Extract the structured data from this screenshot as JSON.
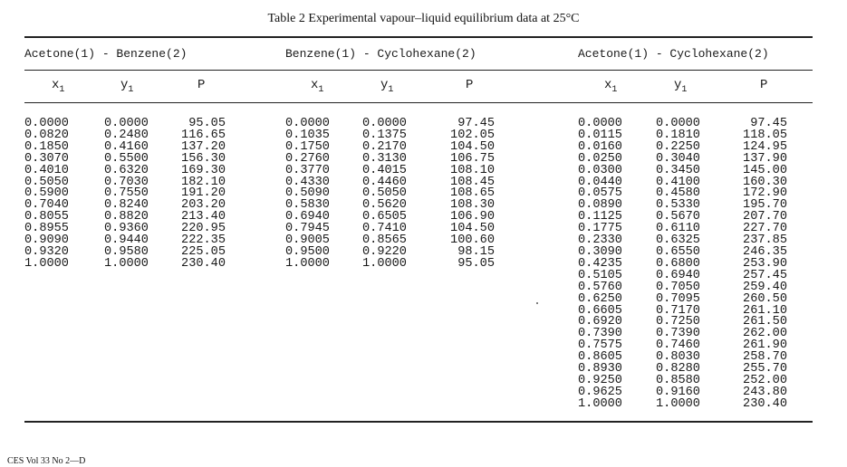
{
  "caption": "Table 2  Experimental vapour–liquid equilibrium data at 25°C",
  "systems": [
    {
      "header": "Acetone(1) - Benzene(2)",
      "col_headers": {
        "x": "x",
        "y": "y",
        "sub": "1",
        "p": "P"
      },
      "x1": [
        "0.0000",
        "0.0820",
        "0.1850",
        "0.3070",
        "0.4010",
        "0.5050",
        "0.5900",
        "0.7040",
        "0.8055",
        "0.8955",
        "0.9090",
        "0.9320",
        "1.0000"
      ],
      "y1": [
        "0.0000",
        "0.2480",
        "0.4160",
        "0.5500",
        "0.6320",
        "0.7030",
        "0.7550",
        "0.8240",
        "0.8820",
        "0.9360",
        "0.9440",
        "0.9580",
        "1.0000"
      ],
      "P": [
        "95.05",
        "116.65",
        "137.20",
        "156.30",
        "169.30",
        "182.10",
        "191.20",
        "203.20",
        "213.40",
        "220.95",
        "222.35",
        "225.05",
        "230.40"
      ]
    },
    {
      "header": "Benzene(1) - Cyclohexane(2)",
      "col_headers": {
        "x": "x",
        "y": "y",
        "sub": "1",
        "p": "P"
      },
      "x1": [
        "0.0000",
        "0.1035",
        "0.1750",
        "0.2760",
        "0.3770",
        "0.4330",
        "0.5090",
        "0.5830",
        "0.6940",
        "0.7945",
        "0.9005",
        "0.9500",
        "1.0000"
      ],
      "y1": [
        "0.0000",
        "0.1375",
        "0.2170",
        "0.3130",
        "0.4015",
        "0.4460",
        "0.5050",
        "0.5620",
        "0.6505",
        "0.7410",
        "0.8565",
        "0.9220",
        "1.0000"
      ],
      "P": [
        "97.45",
        "102.05",
        "104.50",
        "106.75",
        "108.10",
        "108.45",
        "108.65",
        "108.30",
        "106.90",
        "104.50",
        "100.60",
        "98.15",
        "95.05"
      ]
    },
    {
      "header": "Acetone(1) - Cyclohexane(2)",
      "col_headers": {
        "x": "x",
        "y": "y",
        "sub": "1",
        "p": "P"
      },
      "x1": [
        "0.0000",
        "0.0115",
        "0.0160",
        "0.0250",
        "0.0300",
        "0.0440",
        "0.0575",
        "0.0890",
        "0.1125",
        "0.1775",
        "0.2330",
        "0.3090",
        "0.4235",
        "0.5105",
        "0.5760",
        "0.6250",
        "0.6605",
        "0.6920",
        "0.7390",
        "0.7575",
        "0.8605",
        "0.8930",
        "0.9250",
        "0.9625",
        "1.0000"
      ],
      "y1": [
        "0.0000",
        "0.1810",
        "0.2250",
        "0.3040",
        "0.3450",
        "0.4100",
        "0.4580",
        "0.5330",
        "0.5670",
        "0.6110",
        "0.6325",
        "0.6550",
        "0.6800",
        "0.6940",
        "0.7050",
        "0.7095",
        "0.7170",
        "0.7250",
        "0.7390",
        "0.7460",
        "0.8030",
        "0.8280",
        "0.8580",
        "0.9160",
        "1.0000"
      ],
      "P": [
        "97.45",
        "118.05",
        "124.95",
        "137.90",
        "145.00",
        "160.30",
        "172.90",
        "195.70",
        "207.70",
        "227.70",
        "237.85",
        "246.35",
        "253.90",
        "257.45",
        "259.40",
        "260.50",
        "261.10",
        "261.50",
        "262.00",
        "261.90",
        "258.70",
        "255.70",
        "252.00",
        "243.80",
        "230.40"
      ]
    }
  ],
  "footer": "CES Vol 33 No 2—D"
}
